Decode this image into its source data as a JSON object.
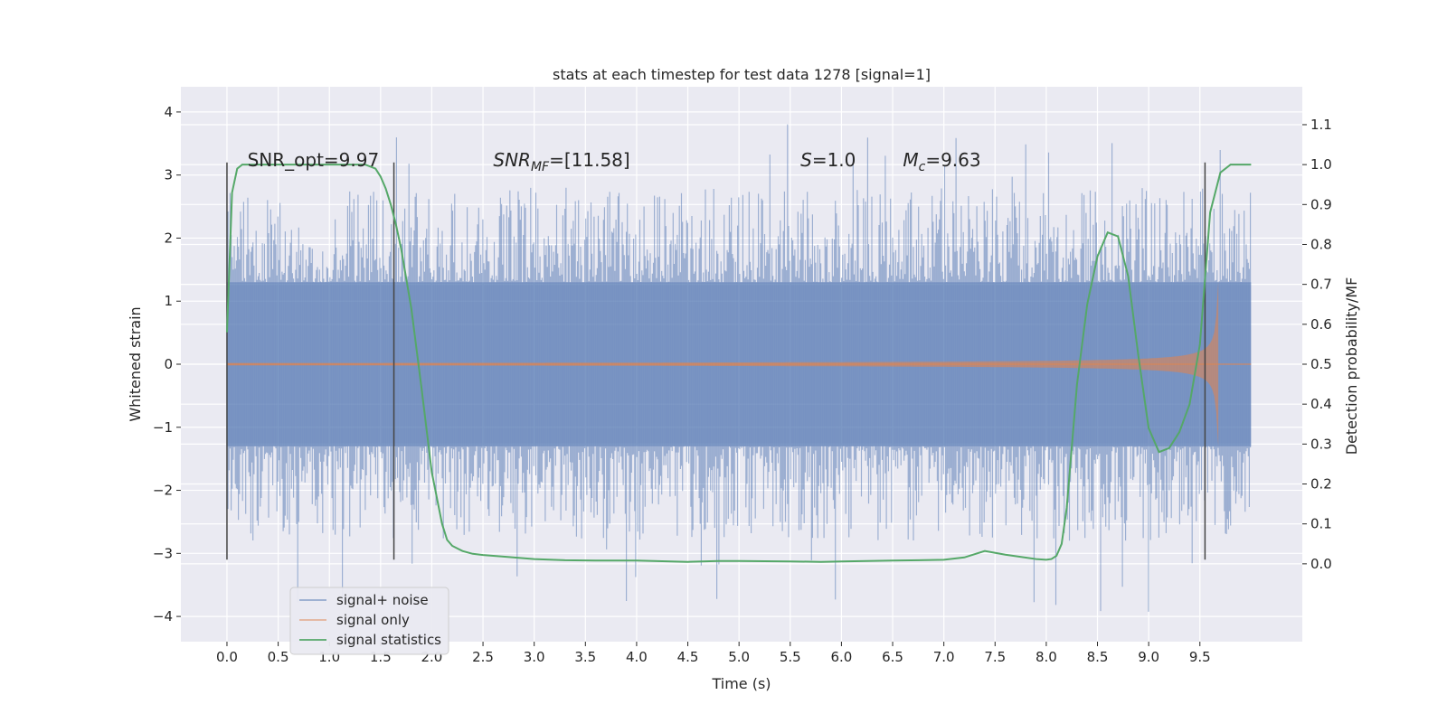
{
  "chart_data": {
    "type": "line",
    "title": "stats at each timestep for test data 1278 [signal=1]",
    "xlabel": "Time (s)",
    "ylabel": "Whitened strain",
    "y2label": "Detection probability/MF",
    "xlim": [
      -0.45,
      10.5
    ],
    "ylim": [
      -4.4,
      4.4
    ],
    "y2lim": [
      -0.195,
      1.195
    ],
    "xticks": [
      "0.0",
      "0.5",
      "1.0",
      "1.5",
      "2.0",
      "2.5",
      "3.0",
      "3.5",
      "4.0",
      "4.5",
      "5.0",
      "5.5",
      "6.0",
      "6.5",
      "7.0",
      "7.5",
      "8.0",
      "8.5",
      "9.0",
      "9.5"
    ],
    "yticks": [
      "4",
      "3",
      "2",
      "1",
      "0",
      "−1",
      "−2",
      "−3",
      "−4"
    ],
    "y2ticks": [
      "1.1",
      "1.0",
      "0.9",
      "0.8",
      "0.7",
      "0.6",
      "0.5",
      "0.4",
      "0.3",
      "0.2",
      "0.1",
      "0.0"
    ],
    "annotations": [
      {
        "text": "SNR_opt=9.97",
        "x": 0.2
      },
      {
        "text": "SNR",
        "sub": "MF",
        "suffix": "=[11.58]",
        "x": 2.6
      },
      {
        "text": "S",
        "suffix": "=1.0",
        "x": 5.6
      },
      {
        "text": "M",
        "sub": "c",
        "suffix": "=9.63",
        "x": 6.6
      }
    ],
    "vlines": [
      0.0,
      1.63,
      9.55
    ],
    "vline_range": [
      -3.1,
      3.2
    ],
    "noise_envelope": {
      "x_range": [
        0.0,
        10.0
      ],
      "core": [
        -1.3,
        1.3
      ],
      "max": [
        -3.95,
        4.05
      ]
    },
    "series": [
      {
        "name": "signal+ noise",
        "color": "#4c72b0"
      },
      {
        "name": "signal only",
        "color": "#dd8452",
        "chirp_end": 9.68,
        "chirp_peak": 1.3
      },
      {
        "name": "signal statistics",
        "color": "#55a868",
        "x": [
          0.0,
          0.05,
          0.1,
          0.15,
          0.2,
          0.3,
          0.5,
          0.8,
          1.0,
          1.2,
          1.35,
          1.45,
          1.5,
          1.55,
          1.6,
          1.65,
          1.7,
          1.8,
          1.9,
          2.0,
          2.1,
          2.15,
          2.2,
          2.3,
          2.4,
          2.5,
          2.7,
          3.0,
          3.3,
          3.6,
          4.0,
          4.5,
          4.8,
          5.0,
          5.5,
          5.8,
          6.0,
          6.5,
          7.0,
          7.2,
          7.4,
          7.6,
          7.9,
          8.0,
          8.05,
          8.1,
          8.15,
          8.2,
          8.3,
          8.4,
          8.5,
          8.6,
          8.7,
          8.8,
          8.9,
          9.0,
          9.1,
          9.2,
          9.3,
          9.4,
          9.5,
          9.6,
          9.7,
          9.8,
          9.9,
          10.0
        ],
        "y": [
          0.58,
          0.93,
          0.99,
          1.0,
          1.0,
          1.0,
          1.0,
          1.0,
          1.0,
          1.0,
          1.0,
          0.99,
          0.97,
          0.94,
          0.9,
          0.85,
          0.79,
          0.64,
          0.44,
          0.23,
          0.1,
          0.06,
          0.045,
          0.032,
          0.025,
          0.022,
          0.018,
          0.012,
          0.009,
          0.008,
          0.008,
          0.005,
          0.007,
          0.007,
          0.006,
          0.005,
          0.006,
          0.008,
          0.01,
          0.016,
          0.032,
          0.023,
          0.012,
          0.01,
          0.012,
          0.02,
          0.05,
          0.14,
          0.45,
          0.65,
          0.77,
          0.83,
          0.82,
          0.72,
          0.52,
          0.34,
          0.28,
          0.29,
          0.33,
          0.4,
          0.55,
          0.88,
          0.98,
          1.0,
          1.0,
          1.0
        ]
      }
    ],
    "legend": "lower-left",
    "grid": true
  }
}
